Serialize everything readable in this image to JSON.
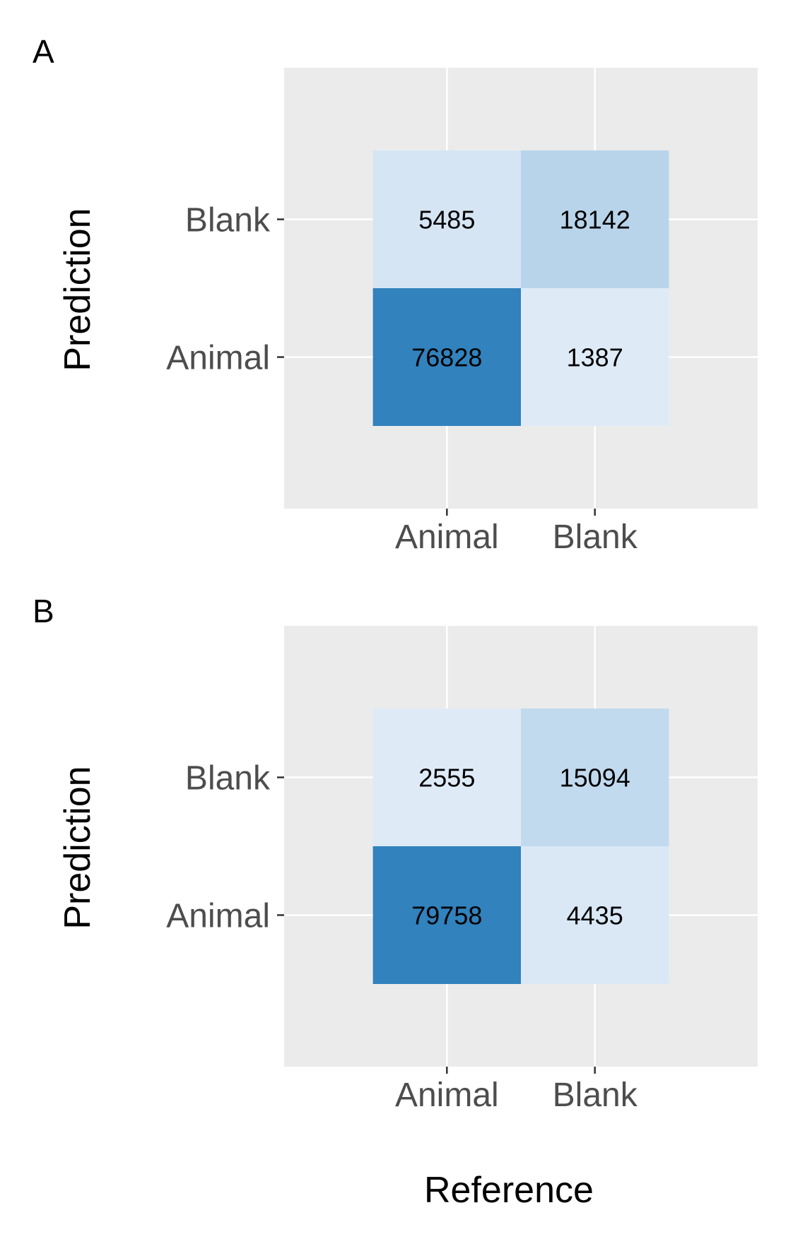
{
  "panels": [
    {
      "letter": "A",
      "ylabel": "Prediction"
    },
    {
      "letter": "B",
      "ylabel": "Prediction"
    }
  ],
  "xlabel": "Reference",
  "chart_data": [
    {
      "type": "heatmap",
      "panel": "A",
      "title": "",
      "xlabel": "Reference",
      "ylabel": "Prediction",
      "x_categories": [
        "Animal",
        "Blank"
      ],
      "y_categories": [
        "Animal",
        "Blank"
      ],
      "cells": [
        {
          "x": "Animal",
          "y": "Blank",
          "value": 5485
        },
        {
          "x": "Blank",
          "y": "Blank",
          "value": 18142
        },
        {
          "x": "Animal",
          "y": "Animal",
          "value": 76828
        },
        {
          "x": "Blank",
          "y": "Animal",
          "value": 1387
        }
      ],
      "color_scale": [
        "#deebf7",
        "#3182bd"
      ],
      "grid": true,
      "legend": "none"
    },
    {
      "type": "heatmap",
      "panel": "B",
      "title": "",
      "xlabel": "Reference",
      "ylabel": "Prediction",
      "x_categories": [
        "Animal",
        "Blank"
      ],
      "y_categories": [
        "Animal",
        "Blank"
      ],
      "cells": [
        {
          "x": "Animal",
          "y": "Blank",
          "value": 2555
        },
        {
          "x": "Blank",
          "y": "Blank",
          "value": 15094
        },
        {
          "x": "Animal",
          "y": "Animal",
          "value": 79758
        },
        {
          "x": "Blank",
          "y": "Animal",
          "value": 4435
        }
      ],
      "color_scale": [
        "#deebf7",
        "#3182bd"
      ],
      "grid": true,
      "legend": "none"
    }
  ]
}
